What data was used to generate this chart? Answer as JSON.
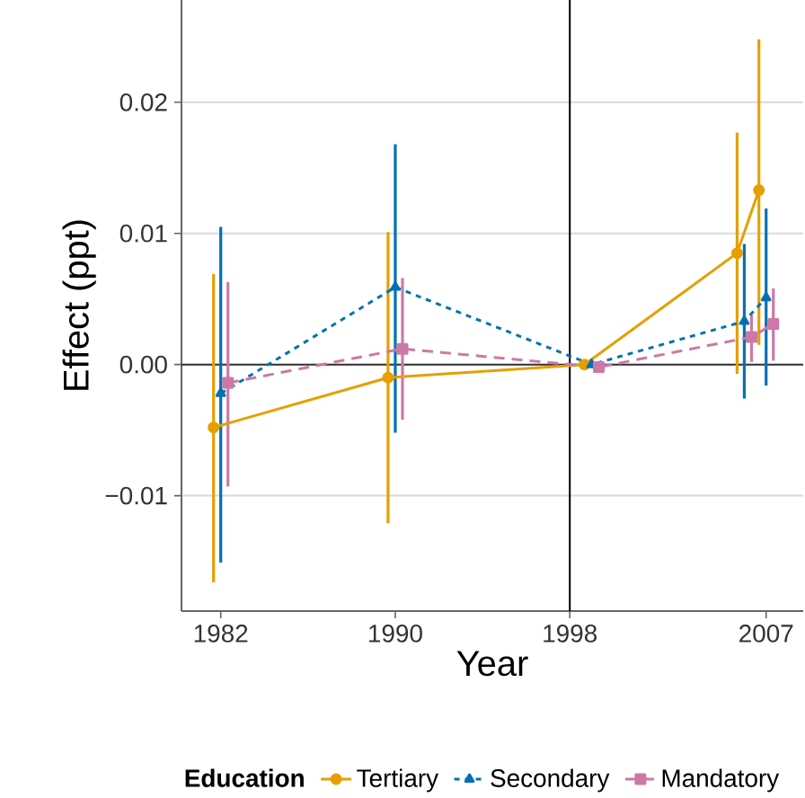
{
  "chart_data": {
    "type": "line",
    "xlabel": "Year",
    "ylabel": "Effect (ppt)",
    "legend_title": "Education",
    "xlim": [
      1980.2,
      2008.7
    ],
    "ylim": [
      -0.0188,
      0.0278
    ],
    "xticks": [
      1982,
      1990,
      1998,
      2007
    ],
    "yticks": [
      {
        "value": -0.01,
        "label": "−0.01"
      },
      {
        "value": 0,
        "label": "0.00"
      },
      {
        "value": 0.01,
        "label": "0.01"
      },
      {
        "value": 0.02,
        "label": "0.02"
      }
    ],
    "grid": "y",
    "legend": "bottom",
    "ref_lines": [
      {
        "axis": "y",
        "value": 0,
        "color": "#333333"
      },
      {
        "axis": "x",
        "value": 1998,
        "color": "#000000"
      }
    ],
    "series": [
      {
        "name": "Tertiary",
        "color": "#e69f00",
        "marker": "circle",
        "line_style": "solid",
        "x": [
          1981.67,
          1989.67,
          1998.67,
          2005.67,
          2006.67
        ],
        "values": [
          -0.0048,
          -0.001,
          0.0,
          0.0085,
          0.0133
        ],
        "errors": [
          [
            -0.0166,
            0.0069
          ],
          [
            -0.0121,
            0.0101
          ],
          null,
          [
            -0.0007,
            0.0177
          ],
          [
            0.0015,
            0.0248
          ]
        ]
      },
      {
        "name": "Secondary",
        "color": "#0072b2",
        "marker": "triangle",
        "line_style": "dotted",
        "x": [
          1982,
          1990,
          1999,
          2006,
          2007
        ],
        "values": [
          -0.0022,
          0.0059,
          0.0,
          0.0033,
          0.0051
        ],
        "errors": [
          [
            -0.0151,
            0.0105
          ],
          [
            -0.0052,
            0.0168
          ],
          null,
          [
            -0.0026,
            0.0092
          ],
          [
            -0.0016,
            0.0119
          ]
        ]
      },
      {
        "name": "Mandatory",
        "color": "#cc79a7",
        "marker": "square",
        "line_style": "dashed",
        "x": [
          1982.33,
          1990.33,
          1999.33,
          2006.33,
          2007.33
        ],
        "values": [
          -0.0014,
          0.0012,
          -0.0002,
          0.0021,
          0.0031
        ],
        "errors": [
          [
            -0.0093,
            0.0063
          ],
          [
            -0.0042,
            0.0066
          ],
          null,
          [
            0.0002,
            0.0038
          ],
          [
            0.0003,
            0.0058
          ]
        ]
      }
    ]
  }
}
